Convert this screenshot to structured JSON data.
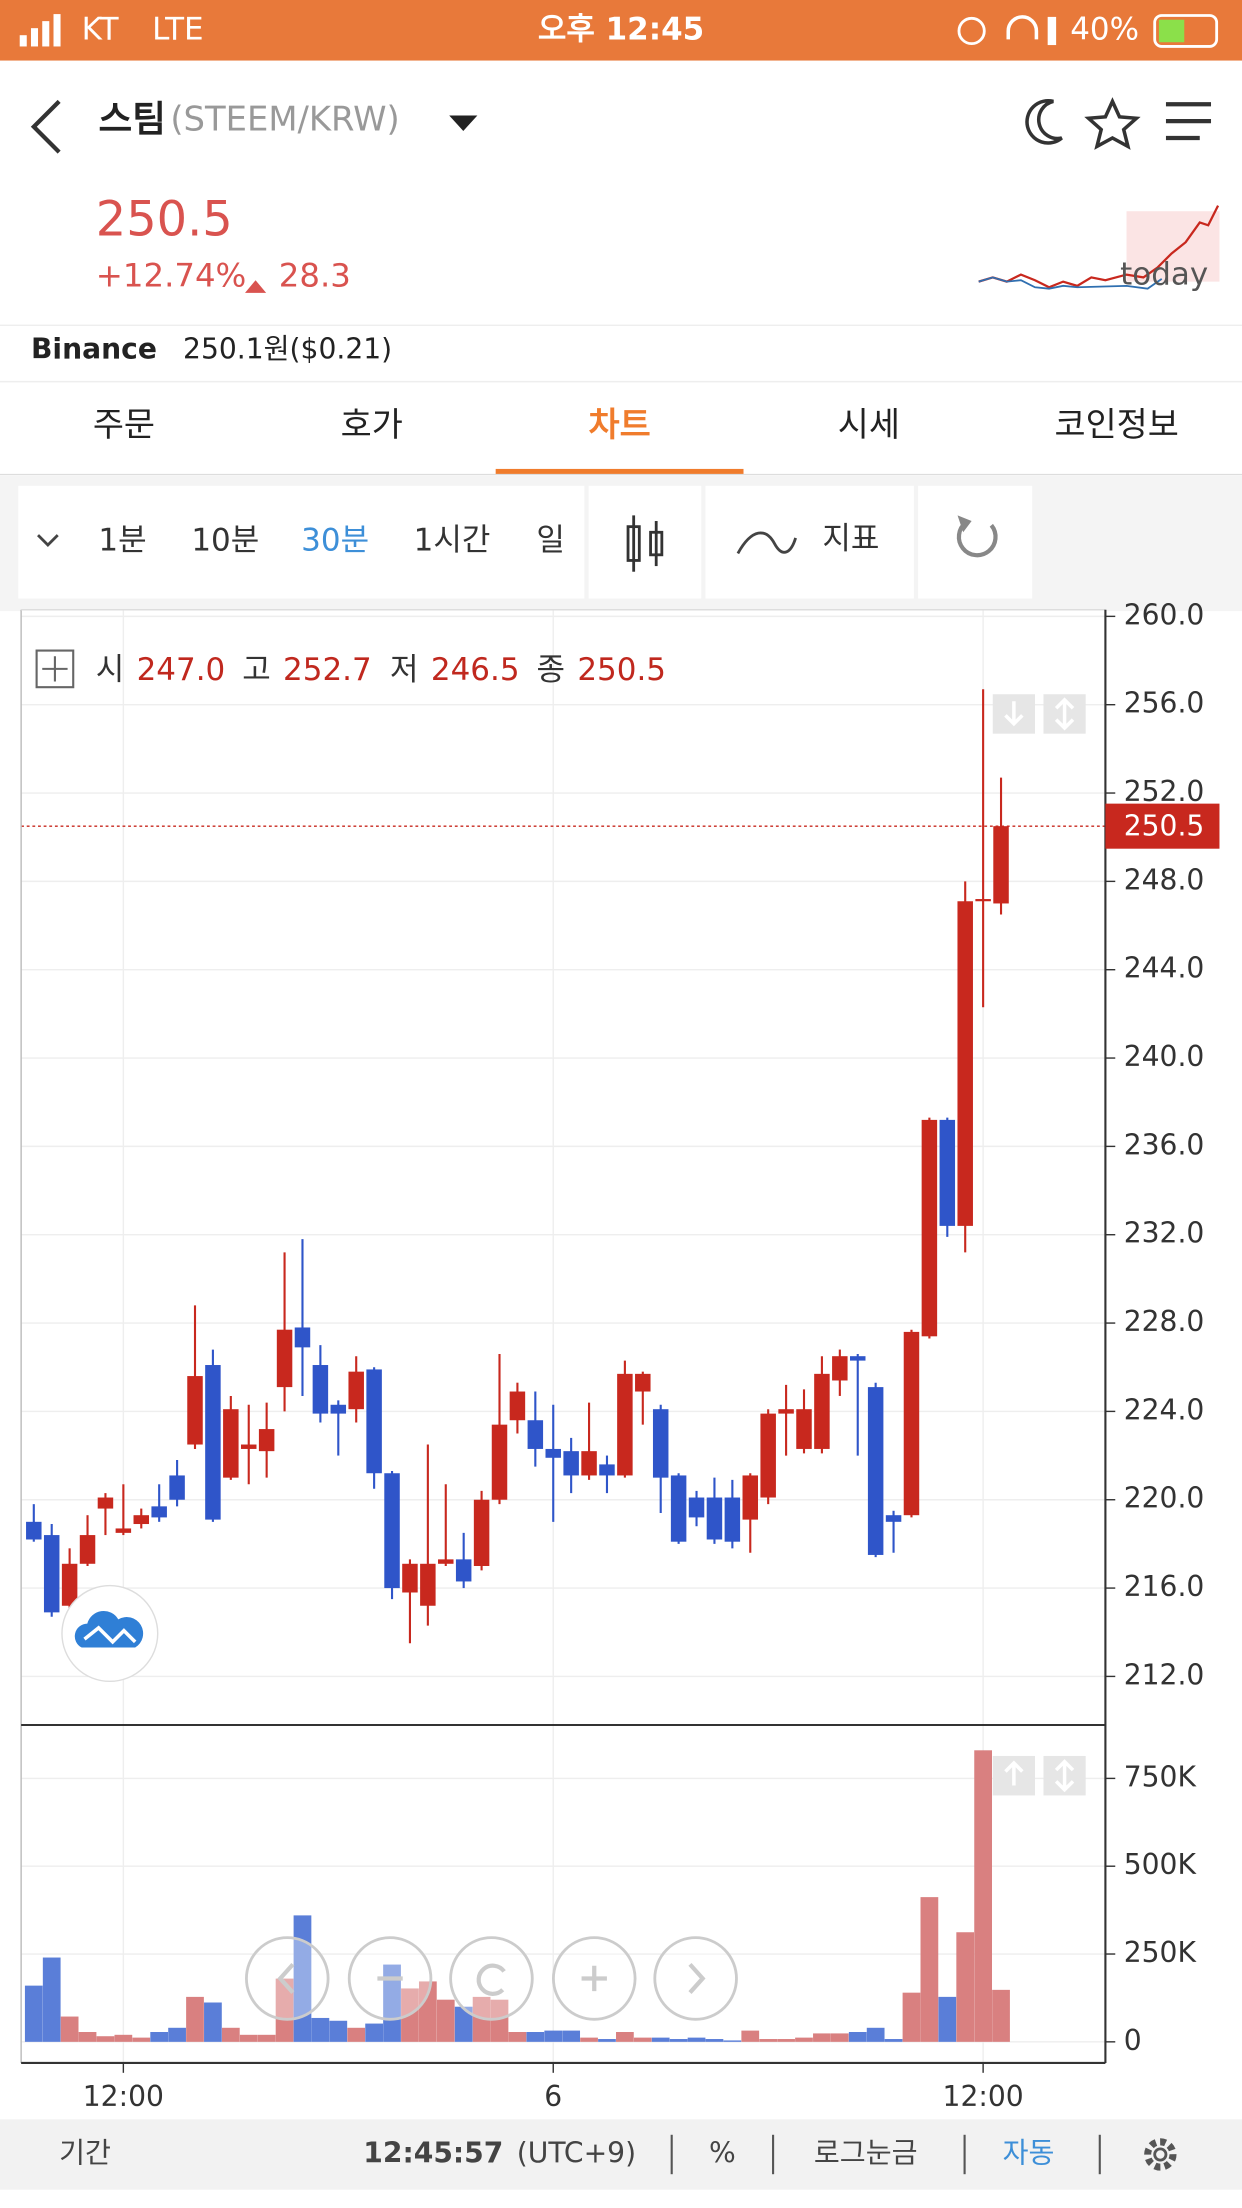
{
  "status_bar": {
    "carrier": "KT",
    "network": "LTE",
    "time": "오후 12:45",
    "battery": "40%"
  },
  "header": {
    "name": "스팀",
    "pair": "(STEEM/KRW)",
    "price": "250.5",
    "change_pct": "+12.74%",
    "change": "28.3",
    "sparkline_label": "today"
  },
  "exchange": {
    "name": "Binance",
    "price": "250.1원($0.21)"
  },
  "tabs": [
    "주문",
    "호가",
    "차트",
    "시세",
    "코인정보"
  ],
  "active_tab": 2,
  "intervals": [
    "1분",
    "10분",
    "30분",
    "1시간",
    "일"
  ],
  "active_interval": 2,
  "indicator_label": "지표",
  "ohlc_legend": {
    "labels": [
      "시",
      "고",
      "저",
      "종"
    ],
    "values": [
      "247.0",
      "252.7",
      "246.5",
      "250.5"
    ]
  },
  "chart_data": {
    "type": "candlestick",
    "categories": [
      null,
      null,
      null,
      null,
      null,
      "12:00",
      null,
      null,
      null,
      null,
      null,
      null,
      null,
      null,
      null,
      null,
      null,
      null,
      null,
      null,
      null,
      null,
      null,
      null,
      null,
      null,
      null,
      null,
      null,
      "6",
      null,
      null,
      null,
      null,
      null,
      null,
      null,
      null,
      null,
      null,
      null,
      null,
      null,
      null,
      null,
      null,
      null,
      null,
      null,
      null,
      null,
      null,
      null,
      "12:00",
      null
    ],
    "open": [
      219.0,
      218.4,
      215.2,
      217.1,
      219.6,
      218.5,
      218.9,
      219.7,
      221.1,
      222.5,
      226.1,
      221.0,
      222.3,
      222.2,
      225.1,
      227.8,
      226.1,
      224.3,
      224.1,
      225.9,
      221.2,
      215.8,
      215.2,
      217.1,
      217.3,
      217.0,
      220.0,
      223.6,
      223.6,
      222.3,
      222.2,
      221.1,
      221.6,
      221.1,
      224.9,
      224.1,
      221.1,
      220.1,
      220.1,
      220.1,
      219.1,
      220.1,
      223.9,
      222.3,
      222.3,
      225.4,
      226.5,
      225.1,
      219.3,
      219.3,
      227.4,
      237.2,
      232.4,
      247.1,
      247.0
    ],
    "high": [
      219.8,
      218.9,
      217.8,
      219.3,
      220.3,
      220.7,
      219.6,
      220.7,
      221.8,
      228.8,
      226.8,
      224.7,
      224.3,
      224.4,
      231.2,
      231.8,
      227.0,
      224.5,
      226.5,
      226.0,
      221.3,
      217.3,
      222.5,
      220.7,
      218.5,
      220.4,
      226.6,
      225.3,
      224.9,
      224.3,
      222.8,
      224.4,
      222.0,
      226.3,
      225.8,
      224.3,
      221.2,
      220.4,
      221.0,
      220.9,
      221.2,
      224.1,
      225.2,
      225.0,
      226.5,
      226.8,
      226.6,
      225.3,
      219.5,
      227.7,
      237.3,
      237.3,
      248.0,
      256.7,
      252.7
    ],
    "low": [
      218.1,
      214.7,
      215.0,
      217.0,
      218.4,
      218.4,
      218.7,
      219.0,
      219.7,
      222.3,
      219.0,
      220.9,
      220.7,
      221.0,
      224.0,
      224.7,
      223.5,
      222.0,
      223.5,
      220.5,
      215.5,
      213.5,
      214.3,
      217.0,
      216.0,
      216.8,
      219.8,
      223.0,
      221.5,
      219.0,
      220.3,
      220.9,
      220.3,
      221.0,
      223.4,
      219.4,
      218.0,
      218.8,
      218.0,
      217.8,
      217.6,
      219.8,
      222.0,
      222.1,
      222.1,
      224.7,
      222.0,
      217.4,
      217.6,
      219.2,
      227.3,
      231.9,
      231.2,
      242.3,
      246.5
    ],
    "close": [
      218.2,
      214.9,
      217.1,
      218.4,
      220.1,
      218.7,
      219.3,
      219.2,
      220.0,
      225.6,
      219.1,
      224.1,
      222.5,
      223.2,
      227.7,
      226.9,
      223.9,
      223.9,
      225.8,
      221.2,
      216.0,
      217.1,
      217.1,
      217.3,
      216.3,
      220.0,
      223.4,
      224.9,
      222.3,
      221.9,
      221.1,
      222.2,
      221.1,
      225.7,
      225.7,
      221.0,
      218.1,
      219.2,
      218.2,
      218.1,
      221.1,
      223.9,
      224.1,
      224.1,
      225.7,
      226.5,
      226.3,
      217.5,
      219.0,
      227.6,
      237.2,
      232.4,
      247.1,
      247.2,
      250.5
    ],
    "volume": [
      160000,
      240000,
      72000,
      28000,
      16000,
      20000,
      12000,
      28000,
      40000,
      128000,
      112000,
      40000,
      20000,
      20000,
      180000,
      360000,
      68000,
      60000,
      40000,
      52000,
      220000,
      152000,
      172000,
      120000,
      100000,
      128000,
      120000,
      28000,
      28000,
      32000,
      32000,
      12000,
      8000,
      28000,
      12000,
      12000,
      8000,
      12000,
      8000,
      4000,
      32000,
      8000,
      8000,
      12000,
      24000,
      24000,
      28000,
      40000,
      8000,
      140000,
      412000,
      128000,
      312000,
      830000,
      148000
    ],
    "up_color": "#c8281e",
    "down_color": "#2f55c9",
    "volume_up_color": "#d98080",
    "volume_down_color": "#5a7ed8",
    "ylim": [
      209.8,
      260.3
    ],
    "yticks": [
      {
        "value": 212,
        "label": "212.0"
      },
      {
        "value": 216,
        "label": "216.0"
      },
      {
        "value": 220,
        "label": "220.0"
      },
      {
        "value": 224,
        "label": "224.0"
      },
      {
        "value": 228,
        "label": "228.0"
      },
      {
        "value": 232,
        "label": "232.0"
      },
      {
        "value": 236,
        "label": "236.0"
      },
      {
        "value": 240,
        "label": "240.0"
      },
      {
        "value": 244,
        "label": "244.0"
      },
      {
        "value": 248,
        "label": "248.0"
      },
      {
        "value": 252,
        "label": "252.0"
      },
      {
        "value": 256,
        "label": "256.0"
      },
      {
        "value": 260,
        "label": "260.0"
      }
    ],
    "volume_lim": [
      0,
      890000
    ],
    "volume_ticks": [
      0,
      {
        "value": 250000,
        "label": "250K"
      },
      {
        "value": 500000,
        "label": "500K"
      },
      {
        "value": 750000,
        "label": "750K"
      }
    ],
    "last_price": 250.5,
    "grid": true
  },
  "footer": {
    "period": "기간",
    "clock": "12:45:57",
    "timezone": "(UTC+9)",
    "percent": "%",
    "log_scale": "로그눈금",
    "auto": "자동"
  }
}
